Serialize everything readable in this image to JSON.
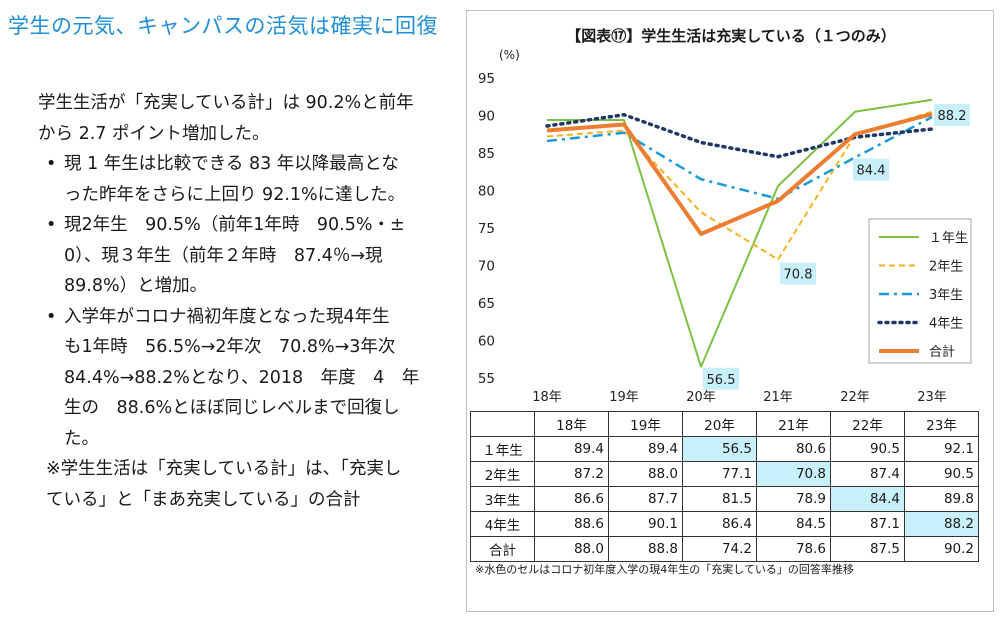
{
  "heading": "学生の元気、キャンパスの活気は確実に回復",
  "body": {
    "intro_1": "学生生活が「充実している計」は 90.2%と前年",
    "intro_2": "から 2.7 ポイント増加した。",
    "bullet1_1": "現 1 年生は比較できる 83 年以降最高とな",
    "bullet1_2": "った昨年をさらに上回り 92.1%に達した。",
    "bullet2_1": "現2年生　90.5%（前年1年時　90.5%・±",
    "bullet2_2": "0）、現３年生（前年２年時　87.4％→現",
    "bullet2_3": "89.8%）と増加。",
    "bullet3_1": "入学年がコロナ禍初年度となった現4年生",
    "bullet3_2": "も1年時　56.5%→2年次　70.8%→3年次",
    "bullet3_3": "84.4%→88.2%となり、2018　年度　4　年",
    "bullet3_4": "生の　88.6%とほぼ同じレベルまで回復し",
    "bullet3_5": "た。",
    "note_1": "※学生生活は「充実している計」は、「充実し",
    "note_2": "ている」と「まあ充実している」の合計"
  },
  "chart_data": {
    "type": "line",
    "title": "【図表⑰】学生生活は充実している（１つのみ）",
    "ylabel": "(%)",
    "categories": [
      "18年",
      "19年",
      "20年",
      "21年",
      "22年",
      "23年"
    ],
    "ylim": [
      55,
      95
    ],
    "yticks": [
      55,
      60,
      65,
      70,
      75,
      80,
      85,
      90,
      95
    ],
    "grid": false,
    "legend_position": "right",
    "series": [
      {
        "name": "１年生",
        "values": [
          89.4,
          89.4,
          56.5,
          80.6,
          90.5,
          92.1
        ],
        "color": "#7cc242",
        "style": "solid"
      },
      {
        "name": "2年生",
        "values": [
          87.2,
          88.0,
          77.1,
          70.8,
          87.4,
          90.5
        ],
        "color": "#f5b21b",
        "style": "dashed"
      },
      {
        "name": "3年生",
        "values": [
          86.6,
          87.7,
          81.5,
          78.9,
          84.4,
          89.8
        ],
        "color": "#1a9ad9",
        "style": "dashdot"
      },
      {
        "name": "4年生",
        "values": [
          88.6,
          90.1,
          86.4,
          84.5,
          87.1,
          88.2
        ],
        "color": "#1f3864",
        "style": "dotted"
      },
      {
        "name": "合計",
        "values": [
          88.0,
          88.8,
          74.2,
          78.6,
          87.5,
          90.2
        ],
        "color": "#ed7d31",
        "style": "thick"
      }
    ],
    "callouts": [
      {
        "label": "56.5",
        "series": 0,
        "index": 2
      },
      {
        "label": "70.8",
        "series": 1,
        "index": 3
      },
      {
        "label": "84.4",
        "series": 2,
        "index": 4
      },
      {
        "label": "88.2",
        "series": 3,
        "index": 5
      }
    ],
    "table": {
      "row_labels": [
        "１年生",
        "2年生",
        "3年生",
        "4年生",
        "合計"
      ],
      "rows": [
        [
          "89.4",
          "89.4",
          "56.5",
          "80.6",
          "90.5",
          "92.1"
        ],
        [
          "87.2",
          "88.0",
          "77.1",
          "70.8",
          "87.4",
          "90.5"
        ],
        [
          "86.6",
          "87.7",
          "81.5",
          "78.9",
          "84.4",
          "89.8"
        ],
        [
          "88.6",
          "90.1",
          "86.4",
          "84.5",
          "87.1",
          "88.2"
        ],
        [
          "88.0",
          "88.8",
          "74.2",
          "78.6",
          "87.5",
          "90.2"
        ]
      ],
      "highlight": [
        [
          0,
          2
        ],
        [
          1,
          3
        ],
        [
          2,
          4
        ],
        [
          3,
          5
        ]
      ],
      "highlight_color": "#c8f0fb"
    },
    "note": "※水色のセルはコロナ初年度入学の現4年生の「充実している」の回答率推移"
  }
}
